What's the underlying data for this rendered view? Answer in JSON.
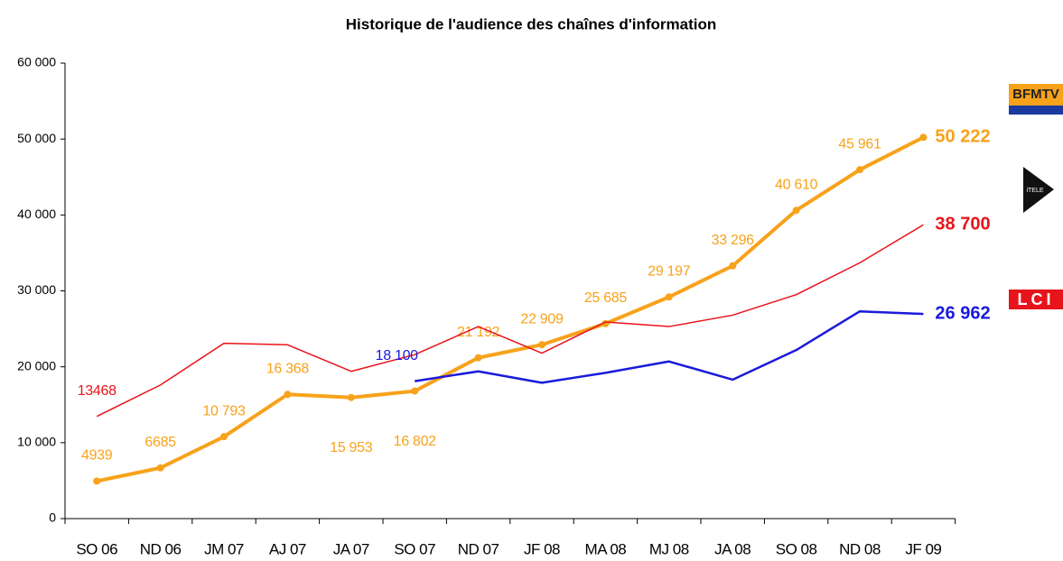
{
  "chart_data": {
    "type": "line",
    "title": "Historique de l'audience des chaînes d'information",
    "categories": [
      "SO 06",
      "ND 06",
      "JM 07",
      "AJ 07",
      "JA 07",
      "SO 07",
      "ND 07",
      "JF 08",
      "MA 08",
      "MJ 08",
      "JA 08",
      "SO 08",
      "ND 08",
      "JF 09"
    ],
    "ylim": [
      0,
      60000
    ],
    "yticks": [
      0,
      {
        "value": 10000,
        "label": "10 000"
      },
      {
        "value": 20000,
        "label": "20 000"
      },
      {
        "value": 30000,
        "label": "30 000"
      },
      {
        "value": 40000,
        "label": "40 000"
      },
      {
        "value": 50000,
        "label": "50 000"
      },
      {
        "value": 60000,
        "label": "60 000"
      }
    ],
    "grid": false,
    "series": [
      {
        "name": "BFMTV",
        "color": "#f7a21b",
        "width": 4,
        "markers": true,
        "values": [
          4939,
          6685,
          10793,
          16368,
          15953,
          16802,
          21192,
          22909,
          25685,
          29197,
          33296,
          40610,
          45961,
          50222
        ],
        "value_labels": [
          "4939",
          "6685",
          "10 793",
          "16 368",
          "15 953",
          "16 802",
          "21 192",
          "22 909",
          "25 685",
          "29 197",
          "33 296",
          "40 610",
          "45 961",
          "50 222"
        ]
      },
      {
        "name": "iTELE",
        "color": "#e8141b",
        "width": 1.5,
        "markers": false,
        "values": [
          13468,
          17600,
          23100,
          22900,
          19400,
          21600,
          25300,
          21800,
          25900,
          25300,
          26800,
          29500,
          33700,
          38700
        ],
        "value_labels": [
          "13468",
          null,
          null,
          null,
          null,
          null,
          null,
          null,
          null,
          null,
          null,
          null,
          null,
          "38 700"
        ]
      },
      {
        "name": "LCI",
        "color": "#1a1adc",
        "width": 2.5,
        "markers": false,
        "values": [
          null,
          null,
          null,
          null,
          null,
          18100,
          19400,
          17900,
          19200,
          20700,
          18300,
          22200,
          27300,
          26962
        ],
        "value_labels": [
          null,
          null,
          null,
          null,
          null,
          "18 100",
          null,
          null,
          null,
          null,
          null,
          null,
          null,
          "26 962"
        ]
      }
    ]
  }
}
